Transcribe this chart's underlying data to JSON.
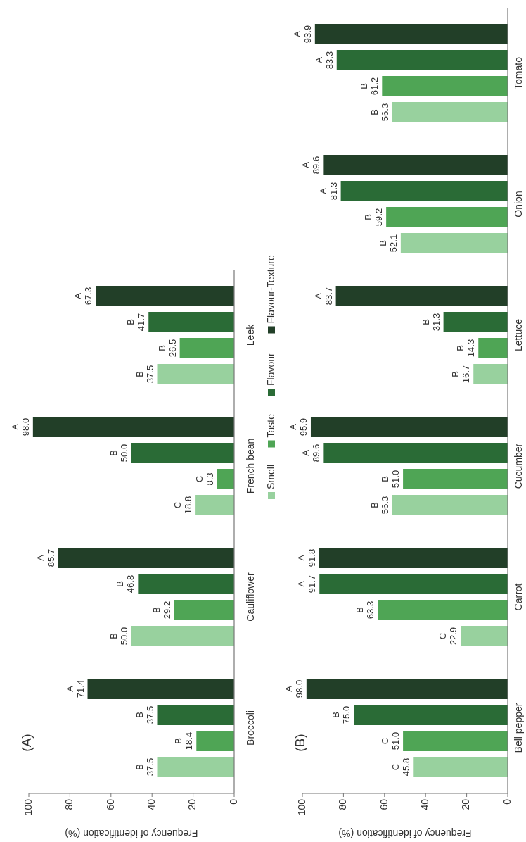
{
  "chart_data": [
    {
      "type": "bar",
      "orientation": "horizontal",
      "title": "(A)",
      "xlabel": "Frequency of identification (%)",
      "categories": [
        "Leek",
        "French bean",
        "Cauliflower",
        "Broccoli"
      ],
      "xlim": [
        100,
        0
      ],
      "xticks": [
        100,
        80,
        60,
        40,
        20,
        0
      ],
      "legend": "right",
      "series": [
        {
          "name": "Smell",
          "color": "#98d19e",
          "values": [
            37.5,
            18.8,
            50.0,
            37.5
          ],
          "value_labels": [
            "B\n37.5",
            "C\n18.8",
            "B\n50.0",
            "B\n37.5"
          ]
        },
        {
          "name": "Taste",
          "color": "#4fa555",
          "values": [
            26.5,
            8.3,
            29.2,
            18.4
          ],
          "value_labels": [
            "B\n26.5",
            "C\n8.3",
            "B\n29.2",
            "B\n18.4"
          ]
        },
        {
          "name": "Flavour",
          "color": "#2a6b36",
          "values": [
            41.7,
            50.0,
            46.8,
            37.5
          ],
          "value_labels": [
            "B\n41.7",
            "B\n50.0",
            "B\n46.8",
            "B\n37.5"
          ]
        },
        {
          "name": "Flavour-Texture",
          "color": "#223f28",
          "values": [
            67.3,
            98.0,
            85.7,
            71.4
          ],
          "value_labels": [
            "A\n67.3",
            "A\n98.0",
            "A\n85.7",
            "A\n71.4"
          ]
        }
      ]
    },
    {
      "type": "bar",
      "orientation": "horizontal",
      "title": "(B)",
      "xlabel": "Frequency of identification (%)",
      "categories": [
        "Tomato",
        "Onion",
        "Lettuce",
        "Cucumber",
        "Carrot",
        "Bell pepper"
      ],
      "xlim": [
        100,
        0
      ],
      "xticks": [
        100,
        80,
        60,
        40,
        20,
        0
      ],
      "series": [
        {
          "color": "#98d19e",
          "values": [
            56.3,
            52.1,
            16.7,
            56.3,
            22.9,
            45.8
          ],
          "value_labels": [
            "B\n56.3",
            "B\n52.1",
            "B\n16.7",
            "B\n56.3",
            "C\n22.9",
            "C\n45.8"
          ]
        },
        {
          "color": "#4fa555",
          "values": [
            61.2,
            59.2,
            14.3,
            51.0,
            63.3,
            51.0
          ],
          "value_labels": [
            "B\n61.2",
            "B\n59.2",
            "B\n14.3",
            "B\n51.0",
            "B\n63.3",
            "C\n51.0"
          ]
        },
        {
          "color": "#2a6b36",
          "values": [
            83.3,
            81.3,
            31.3,
            89.6,
            91.7,
            75.0
          ],
          "value_labels": [
            "A\n83.3",
            "A\n81.3",
            "B\n31.3",
            "A\n89.6",
            "A\n91.7",
            "B\n75.0"
          ]
        },
        {
          "color": "#223f28",
          "values": [
            93.9,
            89.6,
            83.7,
            95.9,
            91.8,
            98.0
          ],
          "value_labels": [
            "A\n93.9",
            "A\n89.6",
            "A\n83.7",
            "A\n95.9",
            "A\n91.8",
            "A\n98.0"
          ]
        }
      ]
    }
  ]
}
